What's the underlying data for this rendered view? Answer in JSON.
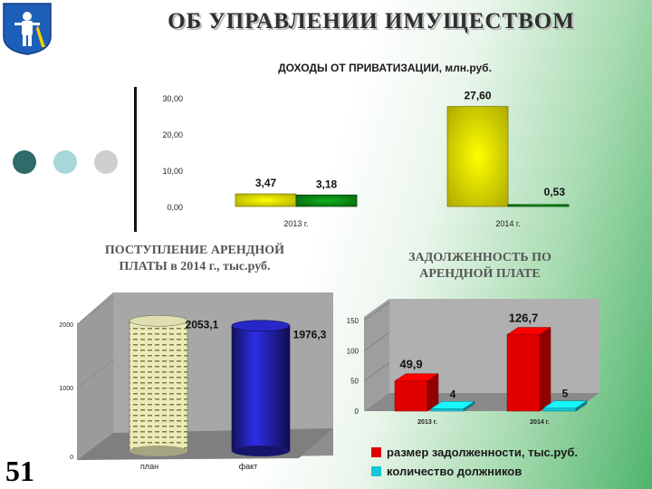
{
  "header": {
    "title": "ОБ УПРАВЛЕНИИ ИМУЩЕСТВОМ",
    "slide_number": "51"
  },
  "decor": {
    "dot_colors": [
      "#2e6b6a",
      "#a8d7da",
      "#cfcfcf"
    ]
  },
  "chart_data": [
    {
      "id": "privatization",
      "type": "bar",
      "title": "ДОХОДЫ ОТ ПРИВАТИЗАЦИИ, млн.руб.",
      "categories": [
        "2013 г.",
        "2014 г."
      ],
      "series": [
        {
          "values": [
            3.47,
            27.6
          ],
          "labels": [
            "3,47",
            "27,60"
          ],
          "color": "#d8d400"
        },
        {
          "values": [
            3.18,
            0.53
          ],
          "labels": [
            "3,18",
            "0,53"
          ],
          "color": "#0a7a14"
        }
      ],
      "y_ticks": [
        "0,00",
        "10,00",
        "20,00",
        "30,00"
      ],
      "ylim": [
        0,
        30
      ]
    },
    {
      "id": "rent",
      "type": "bar",
      "title": "ПОСТУПЛЕНИЕ АРЕНДНОЙ ПЛАТЫ в 2014 г., тыс.руб.",
      "categories": [
        "план",
        "факт"
      ],
      "values": [
        2053.1,
        1976.3
      ],
      "labels": [
        "2053,1",
        "1976,3"
      ],
      "colors": [
        "#ecebb8",
        "#1e1e9a"
      ],
      "y_ticks": [
        "0",
        "1000",
        "2000"
      ],
      "ylim": [
        0,
        2000
      ]
    },
    {
      "id": "debt",
      "type": "bar",
      "title": "ЗАДОЛЖЕННОСТЬ ПО АРЕНДНОЙ ПЛАТЕ",
      "categories": [
        "2013 г.",
        "2014 г."
      ],
      "series": [
        {
          "name": "размер задолженности, тыс.руб.",
          "values": [
            49.9,
            126.7
          ],
          "labels": [
            "49,9",
            "126,7"
          ],
          "color": "#e00000"
        },
        {
          "name": "количество должников",
          "values": [
            4,
            5
          ],
          "labels": [
            "4",
            "5"
          ],
          "color": "#12c6d6"
        }
      ],
      "y_ticks": [
        "0",
        "50",
        "100",
        "150"
      ],
      "ylim": [
        0,
        150
      ],
      "legend": "bottom"
    }
  ]
}
